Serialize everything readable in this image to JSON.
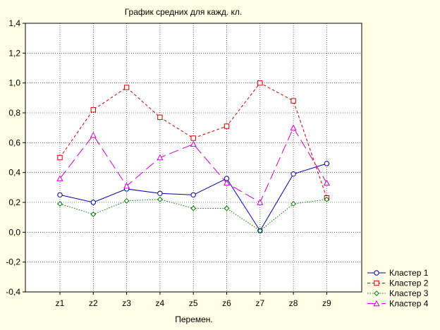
{
  "chart_data": {
    "type": "line",
    "title": "График средних для кажд. кл.",
    "xlabel": "Перемен.",
    "ylabel": "",
    "categories": [
      "z1",
      "z2",
      "z3",
      "z4",
      "z5",
      "z6",
      "z7",
      "z8",
      "z9"
    ],
    "ylim": [
      -0.4,
      1.4
    ],
    "yticks": [
      -0.4,
      -0.2,
      0.0,
      0.2,
      0.4,
      0.6,
      0.8,
      1.0,
      1.2,
      1.4
    ],
    "ytick_labels": [
      "-0,4",
      "-0,2",
      "0,0",
      "0,2",
      "0,4",
      "0,6",
      "0,8",
      "1,0",
      "1,2",
      "1,4"
    ],
    "grid": true,
    "legend_position": "bottom-right",
    "series": [
      {
        "name": "Кластер  1",
        "color": "#0000aa",
        "marker": "circle",
        "line": "solid",
        "values": [
          0.25,
          0.2,
          0.29,
          0.26,
          0.25,
          0.36,
          0.01,
          0.39,
          0.46
        ]
      },
      {
        "name": "Кластер  2",
        "color": "#cc0000",
        "marker": "square",
        "line": "dashed",
        "values": [
          0.5,
          0.82,
          0.97,
          0.77,
          0.63,
          0.71,
          1.0,
          0.88,
          0.23
        ]
      },
      {
        "name": "Кластер  3",
        "color": "#007700",
        "marker": "diamond",
        "line": "dotted",
        "values": [
          0.19,
          0.12,
          0.21,
          0.22,
          0.16,
          0.16,
          0.01,
          0.19,
          0.22
        ]
      },
      {
        "name": "Кластер  4",
        "color": "#cc00cc",
        "marker": "triangle",
        "line": "longdash",
        "values": [
          0.36,
          0.65,
          0.31,
          0.5,
          0.59,
          0.33,
          0.2,
          0.7,
          0.33
        ]
      }
    ]
  }
}
